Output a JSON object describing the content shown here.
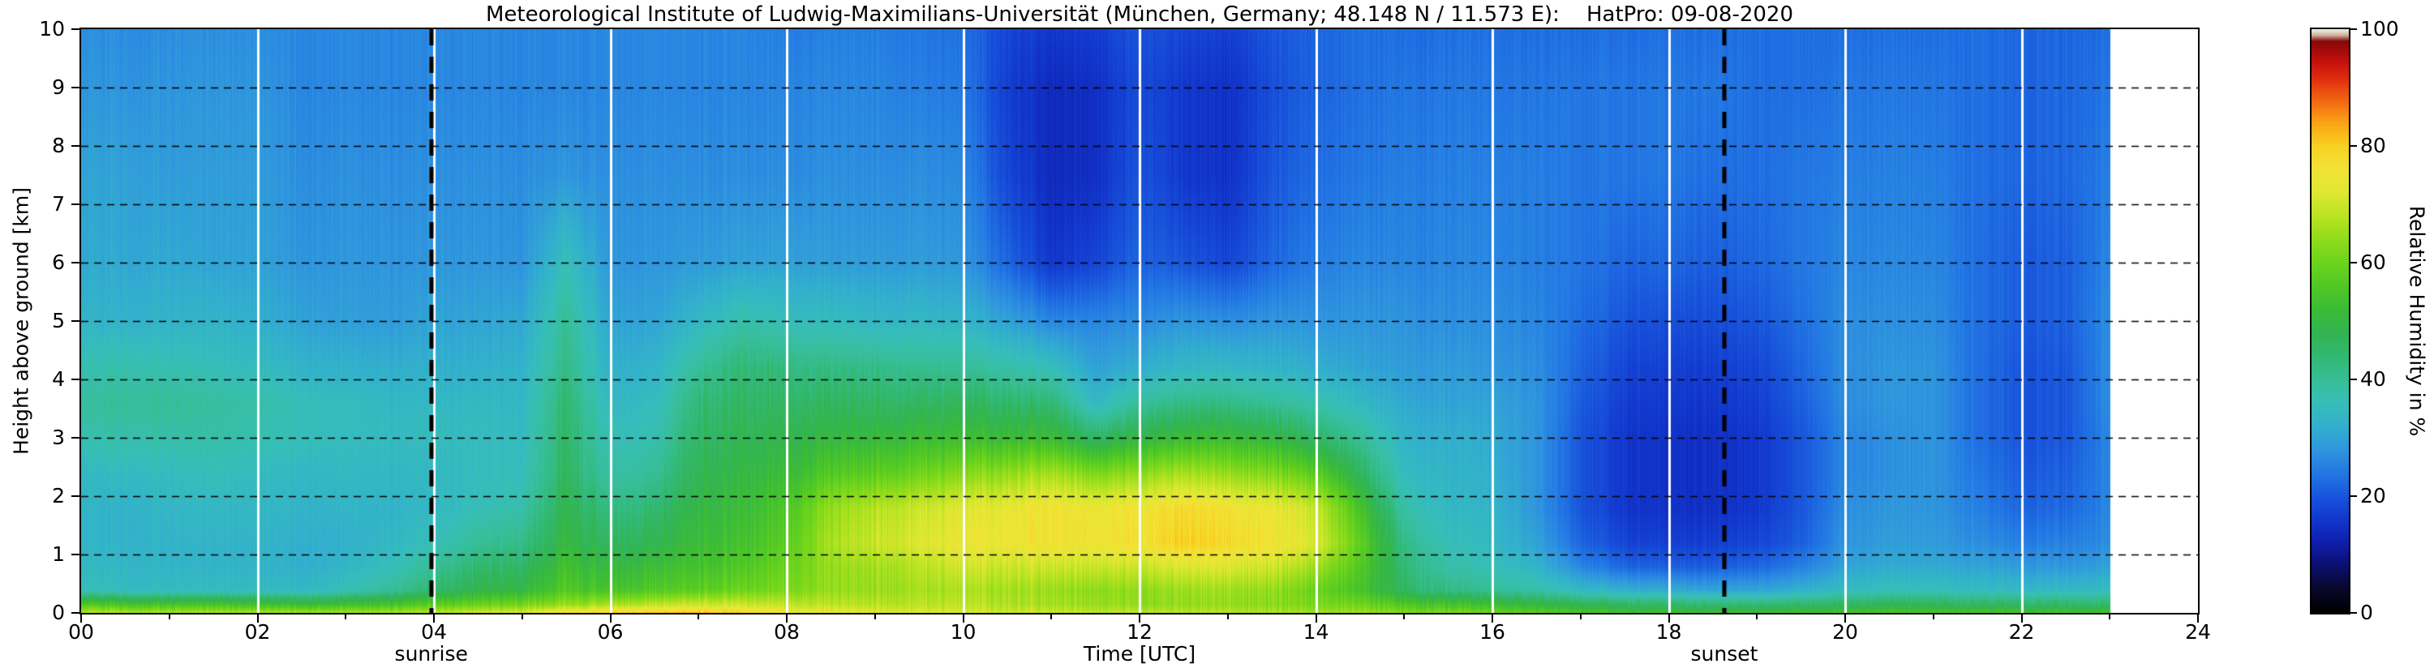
{
  "title": "Meteorological Institute of Ludwig-Maximilians-Universität (München, Germany; 48.148 N / 11.573 E):    HatPro: 09-08-2020",
  "x_axis": {
    "label": "Time [UTC]",
    "tick_labels": [
      "00",
      "02",
      "04",
      "06",
      "08",
      "10",
      "12",
      "14",
      "16",
      "18",
      "20",
      "22",
      "24"
    ],
    "tick_hours": [
      0,
      2,
      4,
      6,
      8,
      10,
      12,
      14,
      16,
      18,
      20,
      22,
      24
    ],
    "minor_tick_hours": [
      1,
      3,
      5,
      7,
      9,
      11,
      13,
      15,
      17,
      19,
      21,
      23
    ],
    "range_hours": [
      0,
      24
    ]
  },
  "y_axis": {
    "label": "Height above ground [km]",
    "tick_labels": [
      "0",
      "1",
      "2",
      "3",
      "4",
      "5",
      "6",
      "7",
      "8",
      "9",
      "10"
    ],
    "tick_km": [
      0,
      1,
      2,
      3,
      4,
      5,
      6,
      7,
      8,
      9,
      10
    ],
    "range_km": [
      0,
      10
    ]
  },
  "colorbar": {
    "label": "Relative Humidity in %",
    "tick_labels": [
      "0",
      "20",
      "40",
      "60",
      "80",
      "100"
    ],
    "tick_values": [
      0,
      20,
      40,
      60,
      80,
      100
    ],
    "range": [
      0,
      100
    ],
    "colormap_stops": [
      [
        0,
        [
          0,
          0,
          0
        ]
      ],
      [
        4,
        [
          8,
          8,
          40
        ]
      ],
      [
        8,
        [
          12,
          15,
          110
        ]
      ],
      [
        12,
        [
          15,
          30,
          170
        ]
      ],
      [
        16,
        [
          18,
          55,
          205
        ]
      ],
      [
        20,
        [
          25,
          85,
          220
        ]
      ],
      [
        24,
        [
          35,
          120,
          228
        ]
      ],
      [
        28,
        [
          48,
          150,
          222
        ]
      ],
      [
        32,
        [
          50,
          176,
          205
        ]
      ],
      [
        36,
        [
          55,
          190,
          185
        ]
      ],
      [
        40,
        [
          55,
          190,
          152
        ]
      ],
      [
        44,
        [
          50,
          185,
          115
        ]
      ],
      [
        48,
        [
          50,
          180,
          82
        ]
      ],
      [
        52,
        [
          60,
          188,
          55
        ]
      ],
      [
        56,
        [
          80,
          200,
          38
        ]
      ],
      [
        60,
        [
          108,
          212,
          28
        ]
      ],
      [
        64,
        [
          145,
          220,
          28
        ]
      ],
      [
        68,
        [
          185,
          228,
          35
        ]
      ],
      [
        72,
        [
          222,
          232,
          50
        ]
      ],
      [
        76,
        [
          242,
          228,
          55
        ]
      ],
      [
        80,
        [
          248,
          210,
          35
        ]
      ],
      [
        84,
        [
          250,
          165,
          22
        ]
      ],
      [
        88,
        [
          242,
          100,
          18
        ]
      ],
      [
        92,
        [
          222,
          40,
          15
        ]
      ],
      [
        95,
        [
          190,
          15,
          12
        ]
      ],
      [
        98,
        [
          135,
          8,
          8
        ]
      ],
      [
        99,
        [
          205,
          175,
          155
        ]
      ],
      [
        100,
        [
          242,
          238,
          230
        ]
      ]
    ]
  },
  "annotations": {
    "sunrise": {
      "label": "sunrise",
      "hour": 3.97
    },
    "sunset": {
      "label": "sunset",
      "hour": 18.63
    }
  },
  "grid": {
    "white_vertical_hours": [
      2,
      4,
      6,
      8,
      10,
      12,
      14,
      16,
      18,
      20,
      22
    ],
    "dashed_horizontal_km": [
      1,
      2,
      3,
      4,
      5,
      6,
      7,
      8,
      9
    ]
  },
  "chart_data": {
    "type": "heatmap",
    "title": "Meteorological Institute of Ludwig-Maximilians-Universität (München, Germany; 48.148 N / 11.573 E):    HatPro: 09-08-2020",
    "xlabel": "Time [UTC]",
    "ylabel": "Height above ground [km]",
    "zlabel": "Relative Humidity in %",
    "xlim": [
      0,
      24
    ],
    "ylim": [
      0,
      10
    ],
    "zlim": [
      0,
      100
    ],
    "no_data_after_hour": 23,
    "x_hours": [
      0,
      0.5,
      1,
      1.5,
      2,
      2.5,
      3,
      3.5,
      4,
      4.5,
      5,
      5.5,
      6,
      6.5,
      7,
      7.5,
      8,
      8.5,
      9,
      9.5,
      10,
      10.5,
      11,
      11.5,
      12,
      12.5,
      13,
      13.5,
      14,
      14.5,
      15,
      15.5,
      16,
      16.5,
      17,
      17.5,
      18,
      18.5,
      19,
      19.5,
      20,
      20.5,
      21,
      21.5,
      22,
      22.5,
      23
    ],
    "y_km": [
      0,
      0.15,
      0.4,
      0.8,
      1.2,
      1.8,
      2.4,
      3,
      3.6,
      4.2,
      5,
      6,
      7.5,
      9,
      10
    ],
    "values_percent": [
      [
        68,
        56,
        36,
        34,
        33,
        33,
        34,
        37,
        39,
        37,
        33,
        31,
        30,
        28,
        27
      ],
      [
        68,
        55,
        35,
        34,
        33,
        33,
        35,
        38,
        40,
        38,
        33,
        31,
        30,
        28,
        27
      ],
      [
        67,
        54,
        35,
        33,
        33,
        34,
        35,
        38,
        40,
        37,
        33,
        31,
        29,
        28,
        27
      ],
      [
        67,
        54,
        35,
        33,
        33,
        34,
        36,
        38,
        39,
        36,
        33,
        30,
        29,
        28,
        27
      ],
      [
        67,
        53,
        35,
        33,
        33,
        34,
        35,
        37,
        38,
        35,
        32,
        30,
        29,
        28,
        27
      ],
      [
        66,
        52,
        34,
        32,
        32,
        33,
        34,
        36,
        36,
        33,
        30,
        28,
        27,
        26,
        26
      ],
      [
        66,
        52,
        36,
        33,
        32,
        33,
        34,
        35,
        35,
        32,
        29,
        28,
        27,
        26,
        26
      ],
      [
        67,
        54,
        40,
        36,
        34,
        33,
        34,
        35,
        34,
        32,
        29,
        28,
        27,
        26,
        26
      ],
      [
        68,
        57,
        44,
        40,
        36,
        34,
        34,
        35,
        34,
        32,
        30,
        28,
        27,
        26,
        26
      ],
      [
        70,
        59,
        48,
        44,
        40,
        36,
        35,
        35,
        34,
        32,
        30,
        28,
        27,
        26,
        26
      ],
      [
        72,
        61,
        50,
        46,
        42,
        38,
        36,
        35,
        34,
        33,
        31,
        28,
        27,
        26,
        26
      ],
      [
        78,
        64,
        56,
        53,
        50,
        48,
        46,
        45,
        44,
        42,
        40,
        36,
        28,
        26,
        26
      ],
      [
        80,
        66,
        54,
        50,
        46,
        42,
        38,
        36,
        34,
        32,
        30,
        28,
        27,
        26,
        26
      ],
      [
        81,
        68,
        56,
        52,
        48,
        44,
        40,
        37,
        35,
        33,
        30,
        28,
        27,
        26,
        26
      ],
      [
        82,
        70,
        58,
        54,
        52,
        50,
        48,
        46,
        44,
        40,
        34,
        29,
        27,
        26,
        26
      ],
      [
        80,
        70,
        60,
        56,
        54,
        52,
        50,
        48,
        46,
        44,
        38,
        30,
        27,
        26,
        26
      ],
      [
        76,
        69,
        62,
        60,
        58,
        56,
        52,
        49,
        46,
        43,
        36,
        30,
        27,
        26,
        25
      ],
      [
        74,
        68,
        64,
        64,
        66,
        64,
        56,
        50,
        46,
        42,
        35,
        29,
        27,
        26,
        25
      ],
      [
        73,
        68,
        65,
        66,
        70,
        68,
        58,
        51,
        46,
        42,
        34,
        29,
        27,
        26,
        25
      ],
      [
        72,
        68,
        66,
        68,
        72,
        70,
        60,
        52,
        46,
        41,
        34,
        29,
        27,
        25,
        24
      ],
      [
        71,
        68,
        66,
        70,
        74,
        72,
        62,
        52,
        46,
        40,
        33,
        28,
        26,
        24,
        23
      ],
      [
        70,
        67,
        66,
        70,
        75,
        74,
        64,
        52,
        45,
        38,
        30,
        22,
        18,
        17,
        18
      ],
      [
        70,
        66,
        65,
        70,
        76,
        76,
        66,
        52,
        44,
        36,
        26,
        16,
        14,
        14,
        16
      ],
      [
        69,
        65,
        64,
        70,
        76,
        75,
        62,
        46,
        34,
        30,
        26,
        18,
        15,
        15,
        17
      ],
      [
        69,
        64,
        64,
        70,
        77,
        76,
        64,
        50,
        40,
        32,
        27,
        22,
        20,
        19,
        20
      ],
      [
        68,
        64,
        65,
        72,
        80,
        78,
        66,
        52,
        42,
        34,
        28,
        20,
        16,
        16,
        18
      ],
      [
        68,
        64,
        65,
        72,
        78,
        76,
        64,
        52,
        42,
        34,
        27,
        18,
        15,
        15,
        17
      ],
      [
        67,
        63,
        64,
        70,
        76,
        74,
        62,
        50,
        40,
        33,
        28,
        22,
        20,
        19,
        20
      ],
      [
        66,
        62,
        60,
        66,
        72,
        70,
        58,
        46,
        38,
        32,
        28,
        25,
        23,
        22,
        22
      ],
      [
        65,
        60,
        54,
        56,
        58,
        54,
        46,
        40,
        34,
        30,
        28,
        26,
        24,
        23,
        23
      ],
      [
        63,
        56,
        46,
        44,
        42,
        38,
        35,
        33,
        31,
        29,
        28,
        26,
        25,
        24,
        23
      ],
      [
        62,
        54,
        42,
        38,
        36,
        34,
        33,
        32,
        30,
        29,
        27,
        26,
        25,
        24,
        23
      ],
      [
        60,
        52,
        40,
        36,
        34,
        33,
        32,
        31,
        30,
        28,
        27,
        26,
        25,
        24,
        23
      ],
      [
        58,
        50,
        38,
        33,
        30,
        28,
        28,
        28,
        28,
        27,
        26,
        25,
        25,
        24,
        23
      ],
      [
        56,
        48,
        34,
        26,
        22,
        20,
        20,
        20,
        21,
        22,
        23,
        24,
        24,
        24,
        23
      ],
      [
        54,
        46,
        32,
        22,
        18,
        16,
        16,
        16,
        17,
        18,
        20,
        22,
        24,
        24,
        23
      ],
      [
        53,
        45,
        31,
        21,
        17,
        15,
        15,
        15,
        16,
        17,
        19,
        22,
        24,
        24,
        23
      ],
      [
        52,
        44,
        30,
        21,
        17,
        15,
        15,
        15,
        16,
        17,
        19,
        21,
        23,
        24,
        23
      ],
      [
        52,
        44,
        30,
        22,
        18,
        16,
        16,
        16,
        17,
        18,
        20,
        22,
        23,
        23,
        23
      ],
      [
        53,
        45,
        32,
        25,
        21,
        20,
        20,
        20,
        21,
        22,
        23,
        24,
        24,
        23,
        23
      ],
      [
        54,
        46,
        35,
        30,
        28,
        27,
        26,
        26,
        27,
        27,
        27,
        26,
        25,
        24,
        23
      ],
      [
        55,
        47,
        36,
        31,
        29,
        28,
        27,
        27,
        28,
        28,
        27,
        26,
        25,
        24,
        23
      ],
      [
        55,
        47,
        36,
        31,
        29,
        28,
        28,
        28,
        28,
        28,
        27,
        26,
        25,
        24,
        23
      ],
      [
        55,
        46,
        35,
        30,
        27,
        25,
        24,
        23,
        23,
        23,
        23,
        23,
        23,
        23,
        23
      ],
      [
        54,
        46,
        34,
        29,
        25,
        22,
        21,
        20,
        20,
        20,
        21,
        21,
        22,
        22,
        22
      ],
      [
        54,
        45,
        34,
        28,
        25,
        22,
        21,
        20,
        20,
        20,
        21,
        21,
        22,
        22,
        22
      ],
      [
        54,
        45,
        35,
        30,
        27,
        26,
        26,
        26,
        27,
        27,
        27,
        26,
        25,
        24,
        23
      ]
    ]
  }
}
